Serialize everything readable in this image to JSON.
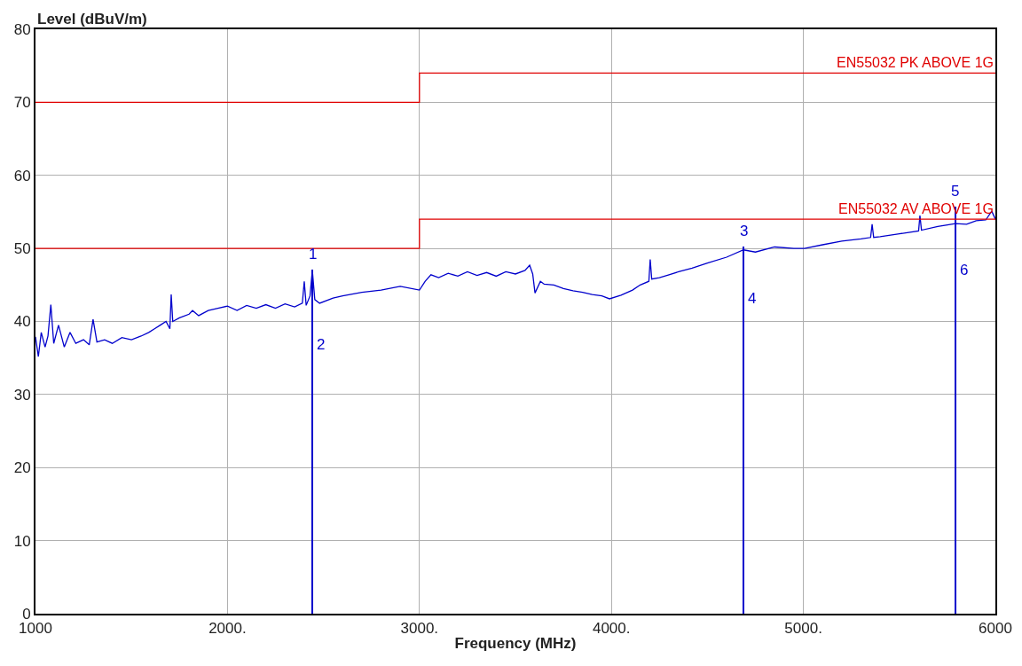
{
  "chart_data": {
    "type": "line",
    "xlabel": "Frequency (MHz)",
    "ylabel": "Level (dBuV/m)",
    "xlim": [
      1000,
      6000
    ],
    "ylim": [
      0,
      80
    ],
    "xticks": [
      1000,
      {
        "value": 2000,
        "label": "2000."
      },
      {
        "value": 3000,
        "label": "3000."
      },
      {
        "value": 4000,
        "label": "4000."
      },
      {
        "value": 5000,
        "label": "5000."
      },
      6000
    ],
    "yticks": [
      0,
      10,
      20,
      30,
      40,
      50,
      60,
      70,
      80
    ],
    "grid": true,
    "legend": false,
    "marker": "none",
    "series": [
      {
        "color": "#0000cc",
        "x": [
          1000,
          1015,
          1030,
          1050,
          1065,
          1080,
          1095,
          1120,
          1150,
          1180,
          1210,
          1250,
          1280,
          1300,
          1320,
          1360,
          1400,
          1450,
          1500,
          1550,
          1590,
          1620,
          1650,
          1680,
          1700,
          1707,
          1715,
          1750,
          1800,
          1818,
          1850,
          1900,
          1950,
          2000,
          2050,
          2100,
          2150,
          2200,
          2250,
          2300,
          2350,
          2390,
          2400,
          2410,
          2430,
          2442,
          2455,
          2480,
          2550,
          2600,
          2700,
          2800,
          2900,
          3000,
          3030,
          3060,
          3100,
          3150,
          3200,
          3250,
          3300,
          3350,
          3400,
          3450,
          3500,
          3550,
          3574,
          3590,
          3602,
          3630,
          3650,
          3700,
          3750,
          3800,
          3850,
          3900,
          3950,
          3990,
          4050,
          4110,
          4150,
          4195,
          4202,
          4210,
          4250,
          4300,
          4350,
          4420,
          4500,
          4600,
          4688,
          4750,
          4850,
          4950,
          5006,
          5100,
          5200,
          5300,
          5350,
          5358,
          5366,
          5400,
          5500,
          5600,
          5607,
          5615,
          5700,
          5792,
          5850,
          5900,
          5950,
          5981,
          6000
        ],
        "values": [
          37.9,
          35.2,
          38.5,
          36.5,
          38,
          42.3,
          37,
          39.5,
          36.5,
          38.5,
          37,
          37.5,
          36.8,
          40.3,
          37.2,
          37.5,
          37,
          37.8,
          37.5,
          38,
          38.5,
          39,
          39.5,
          40,
          39,
          43.7,
          40,
          40.5,
          41,
          41.5,
          40.8,
          41.5,
          41.8,
          42.1,
          41.5,
          42.2,
          41.8,
          42.3,
          41.8,
          42.4,
          42,
          42.5,
          45.5,
          42.2,
          43.5,
          47,
          43,
          42.5,
          43.2,
          43.5,
          44,
          44.3,
          44.8,
          44.3,
          45.5,
          46.4,
          46,
          46.6,
          46.2,
          46.8,
          46.3,
          46.7,
          46.2,
          46.8,
          46.5,
          47,
          47.7,
          46.5,
          43.9,
          45.5,
          45.1,
          45,
          44.5,
          44.2,
          44,
          43.7,
          43.5,
          43.1,
          43.6,
          44.3,
          45,
          45.5,
          48.5,
          45.8,
          46,
          46.4,
          46.8,
          47.3,
          48,
          48.8,
          49.8,
          49.5,
          50.2,
          50,
          50,
          50.5,
          51,
          51.3,
          51.5,
          53.3,
          51.5,
          51.6,
          52,
          52.4,
          54.5,
          52.5,
          53,
          53.4,
          53.3,
          53.8,
          53.9,
          55.1,
          54
        ]
      },
      {
        "type": "step",
        "name": "EN55032 PK ABOVE 1G",
        "color": "#e00000",
        "x": [
          1000,
          3000,
          6000
        ],
        "values": [
          70,
          74,
          74
        ]
      },
      {
        "type": "step",
        "name": "EN55032 AV ABOVE 1G",
        "color": "#e00000",
        "x": [
          1000,
          3000,
          6000
        ],
        "values": [
          50,
          54,
          54
        ]
      },
      {
        "type": "bar",
        "color": "#0000cc",
        "x": [
          2442,
          4688,
          5792
        ],
        "values": [
          47.1,
          50.2,
          55.7
        ]
      }
    ],
    "annotations": [
      {
        "text": "1",
        "x": 2442,
        "y": 47.1
      },
      {
        "text": "2",
        "x": 2442,
        "y": 36.8
      },
      {
        "text": "3",
        "x": 4688,
        "y": 50.2
      },
      {
        "text": "4",
        "x": 4688,
        "y": 43.1
      },
      {
        "text": "5",
        "x": 5792,
        "y": 55.7
      },
      {
        "text": "6",
        "x": 5792,
        "y": 47.0
      }
    ]
  }
}
